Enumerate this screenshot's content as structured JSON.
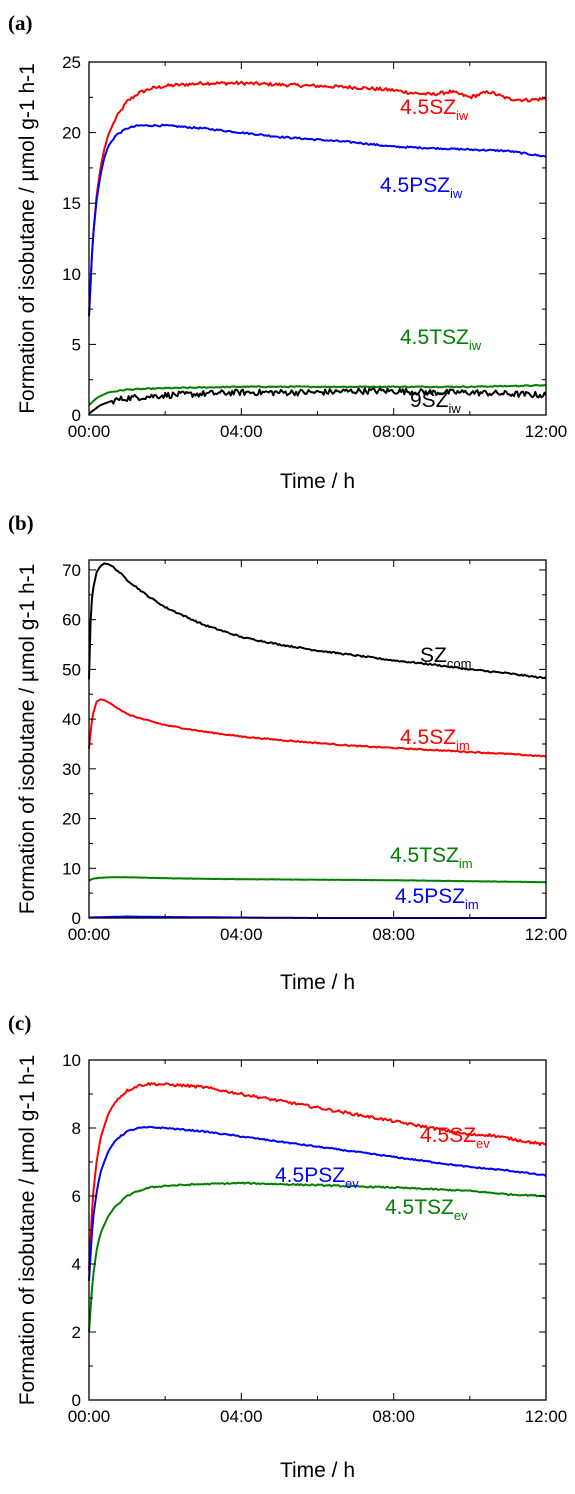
{
  "chart_data": [
    {
      "panel": "(a)",
      "type": "line",
      "xlabel": "Time / h",
      "ylabel": "Formation of isobutane / µmol g-1 h-1",
      "xlim": [
        0,
        12
      ],
      "ylim": [
        0,
        25
      ],
      "xticks": [
        0,
        4,
        8,
        12
      ],
      "xtick_labels": [
        "00:00",
        "04:00",
        "08:00",
        "12:00"
      ],
      "yticks": [
        0,
        5,
        10,
        15,
        20,
        25
      ],
      "ytick_labels": [
        "0",
        "5",
        "10",
        "15",
        "20",
        "25"
      ],
      "grid": false,
      "series": [
        {
          "name": "4.5SZiw",
          "label_main": "4.5SZ",
          "label_sub": "iw",
          "color": "#ff0000",
          "noise": 0.12,
          "x": [
            0,
            0.1,
            0.2,
            0.3,
            0.4,
            0.5,
            0.7,
            1.0,
            1.3,
            1.6,
            2.0,
            2.5,
            3,
            4,
            5,
            6,
            7,
            7.5,
            8,
            8.5,
            9,
            9.5,
            10,
            10.5,
            11,
            11.5,
            12
          ],
          "values": [
            7.0,
            12.5,
            15.5,
            17.5,
            18.8,
            19.8,
            21.0,
            22.2,
            22.8,
            23.1,
            23.3,
            23.4,
            23.5,
            23.5,
            23.4,
            23.3,
            23.2,
            23.1,
            23.0,
            22.8,
            22.7,
            22.9,
            22.5,
            22.9,
            22.4,
            22.3,
            22.4
          ]
        },
        {
          "name": "4.5PSZiw",
          "label_main": "4.5PSZ",
          "label_sub": "iw",
          "color": "#0000ff",
          "noise": 0.06,
          "x": [
            0,
            0.1,
            0.2,
            0.3,
            0.4,
            0.5,
            0.7,
            1.0,
            1.3,
            1.6,
            2.0,
            2.5,
            3,
            4,
            5,
            6,
            7,
            8,
            9,
            10,
            11,
            12
          ],
          "values": [
            7.0,
            12.5,
            15.2,
            17.0,
            18.2,
            19.0,
            19.8,
            20.3,
            20.5,
            20.5,
            20.5,
            20.4,
            20.3,
            20.0,
            19.7,
            19.5,
            19.3,
            19.0,
            18.9,
            18.8,
            18.7,
            18.3
          ]
        },
        {
          "name": "4.5TSZiw",
          "label_main": "4.5TSZ",
          "label_sub": "iw",
          "color": "#008000",
          "noise": 0.04,
          "x": [
            0,
            0.2,
            0.5,
            1.0,
            2,
            4,
            6,
            8,
            10,
            12
          ],
          "values": [
            0.7,
            1.2,
            1.6,
            1.8,
            1.9,
            2.0,
            2.0,
            2.0,
            2.0,
            2.1
          ]
        },
        {
          "name": "9SZiw",
          "label_main": "9SZ",
          "label_sub": "iw",
          "color": "#000000",
          "noise": 0.22,
          "x": [
            0,
            0.3,
            0.6,
            1.0,
            2,
            3,
            4,
            5,
            6,
            7,
            8,
            9,
            10,
            11,
            12
          ],
          "values": [
            0.1,
            0.7,
            1.0,
            1.2,
            1.4,
            1.5,
            1.6,
            1.6,
            1.6,
            1.7,
            1.7,
            1.6,
            1.6,
            1.5,
            1.4
          ]
        }
      ]
    },
    {
      "panel": "(b)",
      "type": "line",
      "xlabel": "Time / h",
      "ylabel": "Formation of isobutane / µmol g-1 h-1",
      "xlim": [
        0,
        12
      ],
      "ylim": [
        0,
        72
      ],
      "xticks": [
        0,
        4,
        8,
        12
      ],
      "xtick_labels": [
        "00:00",
        "04:00",
        "08:00",
        "12:00"
      ],
      "yticks": [
        0,
        10,
        20,
        30,
        40,
        50,
        60,
        70
      ],
      "ytick_labels": [
        "0",
        "10",
        "20",
        "30",
        "40",
        "50",
        "60",
        "70"
      ],
      "grid": false,
      "series": [
        {
          "name": "SZcom",
          "label_main": "SZ",
          "label_sub": "com",
          "color": "#000000",
          "noise": 0.15,
          "x": [
            0,
            0.05,
            0.1,
            0.2,
            0.3,
            0.4,
            0.5,
            0.6,
            0.8,
            1.0,
            1.5,
            2,
            3,
            4,
            5,
            6,
            7,
            8,
            9,
            10,
            11,
            12
          ],
          "values": [
            48,
            62,
            66,
            69.5,
            70.8,
            71.3,
            71.2,
            70.8,
            69.5,
            68,
            65,
            62.5,
            59,
            56.5,
            55,
            53.8,
            52.8,
            51.8,
            51,
            50,
            49.2,
            48.2
          ]
        },
        {
          "name": "4.5SZim",
          "label_main": "4.5SZ",
          "label_sub": "im",
          "color": "#ff0000",
          "noise": 0.12,
          "x": [
            0,
            0.05,
            0.1,
            0.2,
            0.3,
            0.4,
            0.6,
            0.8,
            1.0,
            1.5,
            2,
            3,
            4,
            5,
            6,
            7,
            8,
            9,
            10,
            11,
            12
          ],
          "values": [
            34,
            38,
            41,
            43.5,
            44.0,
            43.8,
            43,
            42,
            41,
            39.8,
            38.8,
            37.5,
            36.5,
            35.8,
            35.2,
            34.6,
            34.2,
            33.8,
            33.4,
            33.0,
            32.5
          ]
        },
        {
          "name": "4.5TSZim",
          "label_main": "4.5TSZ",
          "label_sub": "im",
          "color": "#008000",
          "noise": 0.03,
          "x": [
            0,
            0.1,
            0.3,
            0.6,
            1.0,
            2,
            4,
            6,
            8,
            10,
            12
          ],
          "values": [
            7.5,
            7.9,
            8.1,
            8.2,
            8.2,
            8.0,
            7.8,
            7.7,
            7.6,
            7.4,
            7.2
          ]
        },
        {
          "name": "4.5PSZim",
          "label_main": "4.5PSZ",
          "label_sub": "im",
          "color": "#0000ff",
          "noise": 0.0,
          "x": [
            0,
            1,
            2,
            4,
            6,
            8,
            10,
            12
          ],
          "values": [
            0.1,
            0.3,
            0.2,
            0.1,
            0.0,
            0.0,
            0.0,
            0.0
          ]
        }
      ]
    },
    {
      "panel": "(c)",
      "type": "line",
      "xlabel": "Time / h",
      "ylabel": "Formation of isobutane / µmol g-1 h-1",
      "xlim": [
        0,
        12
      ],
      "ylim": [
        0,
        10
      ],
      "xticks": [
        0,
        4,
        8,
        12
      ],
      "xtick_labels": [
        "00:00",
        "04:00",
        "08:00",
        "12:00"
      ],
      "yticks": [
        0,
        2,
        4,
        6,
        8,
        10
      ],
      "ytick_labels": [
        "0",
        "2",
        "4",
        "6",
        "8",
        "10"
      ],
      "grid": false,
      "series": [
        {
          "name": "4.5SZev",
          "label_main": "4.5SZ",
          "label_sub": "ev",
          "color": "#ff0000",
          "noise": 0.04,
          "x": [
            0,
            0.1,
            0.2,
            0.3,
            0.5,
            0.7,
            1.0,
            1.3,
            1.6,
            2,
            2.5,
            3,
            4,
            5,
            6,
            7,
            8,
            9,
            9.5,
            10,
            10.5,
            11,
            11.5,
            12
          ],
          "values": [
            3.8,
            6.0,
            7.0,
            7.7,
            8.4,
            8.8,
            9.1,
            9.25,
            9.3,
            9.28,
            9.25,
            9.2,
            9.0,
            8.8,
            8.6,
            8.4,
            8.2,
            8.0,
            7.9,
            7.8,
            7.8,
            7.7,
            7.6,
            7.5
          ]
        },
        {
          "name": "4.5PSZev",
          "label_main": "4.5PSZ",
          "label_sub": "ev",
          "color": "#0000ff",
          "noise": 0.02,
          "x": [
            0,
            0.1,
            0.2,
            0.3,
            0.5,
            0.7,
            1.0,
            1.3,
            1.6,
            2,
            2.5,
            3,
            4,
            5,
            6,
            7,
            8,
            9,
            10,
            11,
            12
          ],
          "values": [
            3.5,
            5.3,
            6.1,
            6.7,
            7.3,
            7.65,
            7.9,
            8.0,
            8.02,
            8.0,
            7.95,
            7.9,
            7.75,
            7.6,
            7.45,
            7.3,
            7.15,
            7.0,
            6.85,
            6.75,
            6.6
          ]
        },
        {
          "name": "4.5TSZev",
          "label_main": "4.5TSZ",
          "label_sub": "ev",
          "color": "#008000",
          "noise": 0.02,
          "x": [
            0,
            0.1,
            0.2,
            0.3,
            0.5,
            0.7,
            1.0,
            1.3,
            1.6,
            2,
            3,
            4,
            5,
            6,
            7,
            8,
            9,
            10,
            11,
            12
          ],
          "values": [
            2.0,
            3.6,
            4.4,
            4.9,
            5.4,
            5.7,
            6.0,
            6.15,
            6.25,
            6.3,
            6.35,
            6.38,
            6.35,
            6.32,
            6.28,
            6.25,
            6.2,
            6.15,
            6.05,
            6.0
          ]
        }
      ]
    }
  ]
}
